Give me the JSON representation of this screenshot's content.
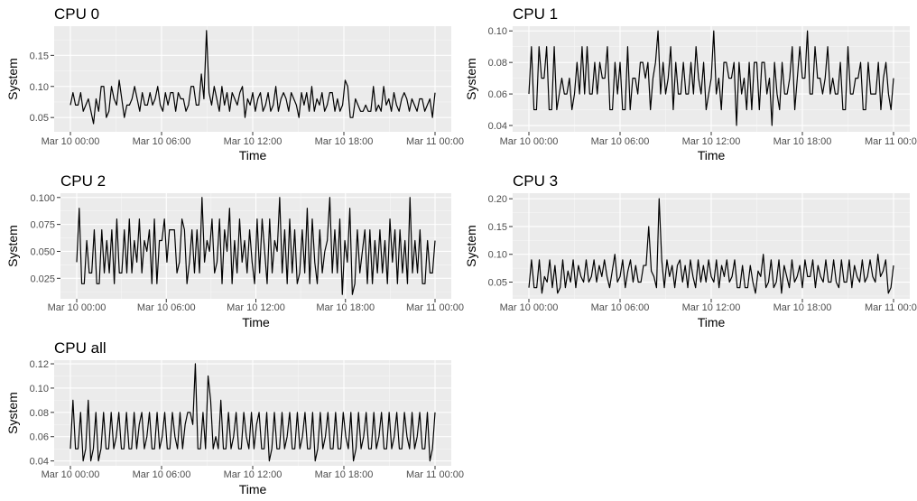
{
  "colors": {
    "panel_bg": "#ebebeb",
    "grid": "#ffffff",
    "line": "#000000",
    "tick_text": "#4d4d4d"
  },
  "chart_data": [
    {
      "type": "line",
      "title": "CPU 0",
      "xlabel": "Time",
      "ylabel": "System",
      "x_ticks": [
        "Mar 10 00:00",
        "Mar 10 06:00",
        "Mar 10 12:00",
        "Mar 10 18:00",
        "Mar 11 00:00"
      ],
      "x_range_hours": [
        0,
        24
      ],
      "y_ticks": [
        "0.05",
        "0.10",
        "0.15"
      ],
      "ylim": [
        0.027,
        0.197
      ],
      "grid": true,
      "values": [
        0.07,
        0.09,
        0.07,
        0.07,
        0.09,
        0.06,
        0.07,
        0.08,
        0.06,
        0.04,
        0.08,
        0.06,
        0.1,
        0.1,
        0.05,
        0.06,
        0.1,
        0.08,
        0.07,
        0.11,
        0.08,
        0.05,
        0.07,
        0.07,
        0.08,
        0.1,
        0.08,
        0.06,
        0.09,
        0.07,
        0.07,
        0.09,
        0.07,
        0.08,
        0.1,
        0.07,
        0.06,
        0.09,
        0.07,
        0.09,
        0.09,
        0.06,
        0.09,
        0.08,
        0.08,
        0.06,
        0.07,
        0.1,
        0.1,
        0.07,
        0.07,
        0.12,
        0.08,
        0.19,
        0.09,
        0.07,
        0.1,
        0.08,
        0.06,
        0.1,
        0.07,
        0.09,
        0.06,
        0.09,
        0.08,
        0.07,
        0.09,
        0.1,
        0.05,
        0.08,
        0.07,
        0.09,
        0.06,
        0.08,
        0.09,
        0.06,
        0.07,
        0.09,
        0.06,
        0.07,
        0.1,
        0.06,
        0.08,
        0.09,
        0.08,
        0.06,
        0.09,
        0.08,
        0.07,
        0.05,
        0.09,
        0.07,
        0.09,
        0.06,
        0.1,
        0.06,
        0.08,
        0.07,
        0.09,
        0.06,
        0.07,
        0.09,
        0.09,
        0.06,
        0.08,
        0.06,
        0.07,
        0.11,
        0.1,
        0.05,
        0.05,
        0.08,
        0.07,
        0.06,
        0.06,
        0.07,
        0.06,
        0.06,
        0.1,
        0.06,
        0.07,
        0.06,
        0.1,
        0.07,
        0.08,
        0.06,
        0.09,
        0.07,
        0.06,
        0.08,
        0.09,
        0.08,
        0.06,
        0.08,
        0.07,
        0.06,
        0.08,
        0.08,
        0.06,
        0.07,
        0.08,
        0.05,
        0.09
      ]
    },
    {
      "type": "line",
      "title": "CPU 1",
      "xlabel": "Time",
      "ylabel": "System",
      "x_ticks": [
        "Mar 10 00:00",
        "Mar 10 06:00",
        "Mar 10 12:00",
        "Mar 10 18:00",
        "Mar 11 00:00"
      ],
      "x_range_hours": [
        0,
        24
      ],
      "y_ticks": [
        "0.04",
        "0.06",
        "0.08",
        "0.10"
      ],
      "ylim": [
        0.036,
        0.103
      ],
      "grid": true,
      "values": [
        0.06,
        0.09,
        0.05,
        0.05,
        0.09,
        0.07,
        0.07,
        0.09,
        0.05,
        0.05,
        0.09,
        0.05,
        0.06,
        0.07,
        0.06,
        0.06,
        0.07,
        0.05,
        0.06,
        0.08,
        0.06,
        0.09,
        0.06,
        0.09,
        0.06,
        0.06,
        0.08,
        0.06,
        0.08,
        0.07,
        0.07,
        0.09,
        0.05,
        0.05,
        0.08,
        0.06,
        0.08,
        0.05,
        0.05,
        0.09,
        0.05,
        0.07,
        0.07,
        0.06,
        0.08,
        0.08,
        0.07,
        0.08,
        0.05,
        0.07,
        0.08,
        0.1,
        0.06,
        0.08,
        0.06,
        0.07,
        0.09,
        0.05,
        0.08,
        0.06,
        0.06,
        0.08,
        0.06,
        0.06,
        0.08,
        0.06,
        0.09,
        0.07,
        0.06,
        0.08,
        0.05,
        0.06,
        0.07,
        0.1,
        0.06,
        0.07,
        0.05,
        0.08,
        0.08,
        0.07,
        0.07,
        0.08,
        0.04,
        0.08,
        0.06,
        0.07,
        0.05,
        0.08,
        0.05,
        0.08,
        0.08,
        0.05,
        0.08,
        0.08,
        0.06,
        0.07,
        0.04,
        0.08,
        0.06,
        0.05,
        0.08,
        0.06,
        0.06,
        0.07,
        0.09,
        0.05,
        0.07,
        0.09,
        0.07,
        0.07,
        0.1,
        0.06,
        0.06,
        0.09,
        0.07,
        0.07,
        0.06,
        0.07,
        0.09,
        0.06,
        0.07,
        0.06,
        0.06,
        0.08,
        0.05,
        0.05,
        0.09,
        0.06,
        0.06,
        0.07,
        0.07,
        0.08,
        0.05,
        0.05,
        0.08,
        0.06,
        0.06,
        0.06,
        0.08,
        0.05,
        0.07,
        0.08,
        0.06,
        0.05,
        0.07
      ]
    },
    {
      "type": "line",
      "title": "CPU 2",
      "xlabel": "Time",
      "ylabel": "System",
      "x_ticks": [
        "Mar 10 00:00",
        "Mar 10 06:00",
        "Mar 10 12:00",
        "Mar 10 18:00",
        "Mar 11 00:00"
      ],
      "x_range_hours": [
        0,
        24
      ],
      "y_ticks": [
        "0.025",
        "0.050",
        "0.075",
        "0.100"
      ],
      "ylim": [
        0.006,
        0.104
      ],
      "grid": true,
      "values": [
        0.04,
        0.09,
        0.02,
        0.02,
        0.06,
        0.03,
        0.03,
        0.07,
        0.02,
        0.02,
        0.07,
        0.03,
        0.06,
        0.03,
        0.07,
        0.02,
        0.08,
        0.03,
        0.03,
        0.07,
        0.03,
        0.08,
        0.03,
        0.06,
        0.04,
        0.08,
        0.03,
        0.06,
        0.05,
        0.07,
        0.02,
        0.08,
        0.02,
        0.06,
        0.06,
        0.08,
        0.04,
        0.07,
        0.07,
        0.07,
        0.03,
        0.04,
        0.08,
        0.07,
        0.02,
        0.04,
        0.07,
        0.03,
        0.07,
        0.03,
        0.1,
        0.04,
        0.06,
        0.05,
        0.08,
        0.03,
        0.04,
        0.08,
        0.02,
        0.07,
        0.05,
        0.09,
        0.02,
        0.06,
        0.03,
        0.08,
        0.04,
        0.06,
        0.03,
        0.07,
        0.04,
        0.02,
        0.08,
        0.03,
        0.08,
        0.05,
        0.02,
        0.08,
        0.03,
        0.06,
        0.05,
        0.1,
        0.03,
        0.07,
        0.02,
        0.08,
        0.03,
        0.07,
        0.02,
        0.03,
        0.07,
        0.03,
        0.09,
        0.02,
        0.08,
        0.04,
        0.02,
        0.07,
        0.03,
        0.05,
        0.06,
        0.1,
        0.03,
        0.07,
        0.03,
        0.08,
        0.01,
        0.06,
        0.04,
        0.09,
        0.01,
        0.02,
        0.07,
        0.03,
        0.05,
        0.07,
        0.02,
        0.07,
        0.02,
        0.06,
        0.03,
        0.07,
        0.03,
        0.06,
        0.02,
        0.08,
        0.04,
        0.07,
        0.02,
        0.07,
        0.03,
        0.06,
        0.02,
        0.1,
        0.03,
        0.06,
        0.03,
        0.07,
        0.02,
        0.02,
        0.06,
        0.03,
        0.03,
        0.06
      ]
    },
    {
      "type": "line",
      "title": "CPU 3",
      "xlabel": "Time",
      "ylabel": "System",
      "x_ticks": [
        "Mar 10 00:00",
        "Mar 10 06:00",
        "Mar 10 12:00",
        "Mar 10 18:00",
        "Mar 11 00:00"
      ],
      "x_range_hours": [
        0,
        24
      ],
      "y_ticks": [
        "0.05",
        "0.10",
        "0.15",
        "0.20"
      ],
      "ylim": [
        0.02,
        0.21
      ],
      "grid": true,
      "values": [
        0.04,
        0.09,
        0.04,
        0.04,
        0.09,
        0.03,
        0.06,
        0.05,
        0.09,
        0.04,
        0.08,
        0.03,
        0.04,
        0.09,
        0.04,
        0.07,
        0.05,
        0.09,
        0.04,
        0.08,
        0.06,
        0.05,
        0.09,
        0.05,
        0.06,
        0.09,
        0.05,
        0.08,
        0.06,
        0.09,
        0.06,
        0.04,
        0.07,
        0.1,
        0.05,
        0.06,
        0.09,
        0.04,
        0.07,
        0.09,
        0.05,
        0.08,
        0.05,
        0.05,
        0.08,
        0.08,
        0.15,
        0.07,
        0.06,
        0.04,
        0.2,
        0.09,
        0.04,
        0.09,
        0.06,
        0.08,
        0.04,
        0.08,
        0.09,
        0.05,
        0.08,
        0.04,
        0.09,
        0.06,
        0.04,
        0.09,
        0.05,
        0.08,
        0.05,
        0.09,
        0.06,
        0.05,
        0.09,
        0.04,
        0.08,
        0.06,
        0.09,
        0.05,
        0.06,
        0.09,
        0.04,
        0.04,
        0.08,
        0.04,
        0.04,
        0.08,
        0.05,
        0.03,
        0.07,
        0.06,
        0.1,
        0.04,
        0.05,
        0.09,
        0.04,
        0.05,
        0.09,
        0.03,
        0.08,
        0.06,
        0.04,
        0.09,
        0.05,
        0.06,
        0.08,
        0.04,
        0.09,
        0.06,
        0.06,
        0.09,
        0.04,
        0.08,
        0.06,
        0.05,
        0.09,
        0.05,
        0.05,
        0.09,
        0.05,
        0.04,
        0.09,
        0.05,
        0.05,
        0.09,
        0.04,
        0.08,
        0.06,
        0.05,
        0.09,
        0.05,
        0.06,
        0.09,
        0.06,
        0.05,
        0.1,
        0.06,
        0.07,
        0.09,
        0.03,
        0.04,
        0.08
      ]
    },
    {
      "type": "line",
      "title": "CPU all",
      "xlabel": "Time",
      "ylabel": "System",
      "x_ticks": [
        "Mar 10 00:00",
        "Mar 10 06:00",
        "Mar 10 12:00",
        "Mar 10 18:00",
        "Mar 11 00:00"
      ],
      "x_range_hours": [
        0,
        24
      ],
      "y_ticks": [
        "0.04",
        "0.06",
        "0.08",
        "0.10",
        "0.12"
      ],
      "ylim": [
        0.036,
        0.123
      ],
      "grid": true,
      "values": [
        0.05,
        0.09,
        0.05,
        0.05,
        0.08,
        0.04,
        0.05,
        0.09,
        0.04,
        0.05,
        0.08,
        0.04,
        0.05,
        0.08,
        0.05,
        0.05,
        0.08,
        0.05,
        0.06,
        0.08,
        0.05,
        0.05,
        0.08,
        0.05,
        0.05,
        0.08,
        0.05,
        0.07,
        0.08,
        0.05,
        0.06,
        0.08,
        0.05,
        0.05,
        0.08,
        0.05,
        0.06,
        0.08,
        0.05,
        0.05,
        0.08,
        0.06,
        0.05,
        0.08,
        0.05,
        0.07,
        0.08,
        0.08,
        0.07,
        0.12,
        0.05,
        0.05,
        0.08,
        0.05,
        0.11,
        0.09,
        0.05,
        0.06,
        0.05,
        0.09,
        0.05,
        0.05,
        0.08,
        0.05,
        0.06,
        0.08,
        0.05,
        0.05,
        0.08,
        0.06,
        0.05,
        0.08,
        0.05,
        0.07,
        0.08,
        0.05,
        0.05,
        0.08,
        0.04,
        0.05,
        0.08,
        0.05,
        0.05,
        0.08,
        0.05,
        0.06,
        0.08,
        0.05,
        0.05,
        0.08,
        0.05,
        0.06,
        0.08,
        0.05,
        0.05,
        0.08,
        0.04,
        0.05,
        0.08,
        0.05,
        0.06,
        0.08,
        0.05,
        0.05,
        0.08,
        0.05,
        0.05,
        0.08,
        0.06,
        0.05,
        0.08,
        0.04,
        0.05,
        0.08,
        0.05,
        0.06,
        0.08,
        0.05,
        0.05,
        0.08,
        0.05,
        0.06,
        0.08,
        0.05,
        0.05,
        0.08,
        0.05,
        0.06,
        0.08,
        0.05,
        0.05,
        0.08,
        0.06,
        0.05,
        0.08,
        0.05,
        0.06,
        0.08,
        0.05,
        0.05,
        0.08,
        0.04,
        0.05,
        0.08
      ]
    }
  ]
}
